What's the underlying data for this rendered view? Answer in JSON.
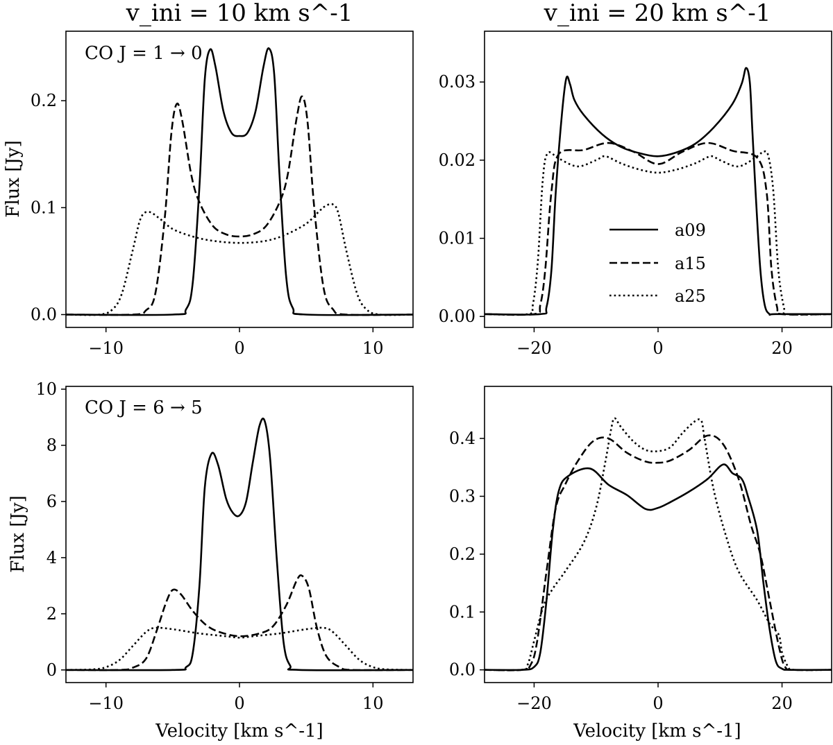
{
  "chart_data": {
    "type": "line",
    "column_titles": [
      "v_ini = 10 km s^-1",
      "v_ini = 20 km s^-1"
    ],
    "legend": {
      "position": "center-right of top-right panel",
      "entries": [
        {
          "label": "a09",
          "style": "solid"
        },
        {
          "label": "a15",
          "style": "dashed"
        },
        {
          "label": "a25",
          "style": "dotted"
        }
      ]
    },
    "panels": [
      {
        "id": "top-left",
        "row_label": "CO J = 1 → 0",
        "xlabel": "",
        "ylabel": "Flux [Jy]",
        "xlim": [
          -13,
          13
        ],
        "ylim": [
          -0.012,
          0.265
        ],
        "xticks": [
          -10,
          0,
          10
        ],
        "xticklabels": [
          "−10",
          "0",
          "10"
        ],
        "yticks": [
          0.0,
          0.1,
          0.2
        ],
        "yticklabels": [
          "0.0",
          "0.1",
          "0.2"
        ],
        "series": [
          {
            "name": "a09",
            "style": "solid",
            "x": [
              -13,
              -5,
              -4,
              -3.5,
              -3,
              -2.6,
              -2.2,
              -1.8,
              -1.2,
              -0.6,
              0,
              0.6,
              1.2,
              1.8,
              2.2,
              2.6,
              3,
              3.5,
              4,
              5,
              13
            ],
            "y": [
              0,
              0,
              0.005,
              0.03,
              0.12,
              0.22,
              0.248,
              0.232,
              0.19,
              0.17,
              0.167,
              0.17,
              0.19,
              0.232,
              0.249,
              0.225,
              0.13,
              0.035,
              0.006,
              0,
              0
            ]
          },
          {
            "name": "a15",
            "style": "dashed",
            "x": [
              -13,
              -8,
              -7,
              -6.3,
              -5.6,
              -5.1,
              -4.7,
              -4.3,
              -3.6,
              -3,
              -2,
              -1,
              0,
              1,
              2,
              3,
              3.6,
              4.3,
              4.7,
              5.1,
              5.6,
              6.3,
              7,
              8,
              13
            ],
            "y": [
              0,
              0,
              0.004,
              0.02,
              0.09,
              0.17,
              0.197,
              0.182,
              0.13,
              0.105,
              0.083,
              0.075,
              0.073,
              0.075,
              0.083,
              0.105,
              0.13,
              0.185,
              0.204,
              0.18,
              0.1,
              0.025,
              0.005,
              0,
              0
            ]
          },
          {
            "name": "a25",
            "style": "dotted",
            "x": [
              -13,
              -10.5,
              -9.5,
              -8.8,
              -8,
              -7.4,
              -6.8,
              -6,
              -5,
              -3.5,
              -2,
              0,
              2,
              3.5,
              5,
              6,
              6.5,
              7,
              7.4,
              8,
              8.8,
              9.5,
              10.5,
              13
            ],
            "y": [
              0,
              0,
              0.005,
              0.02,
              0.06,
              0.09,
              0.096,
              0.09,
              0.08,
              0.073,
              0.069,
              0.067,
              0.069,
              0.075,
              0.085,
              0.097,
              0.102,
              0.103,
              0.095,
              0.06,
              0.02,
              0.005,
              0,
              0
            ]
          }
        ]
      },
      {
        "id": "top-right",
        "row_label": "",
        "xlabel": "",
        "ylabel": "",
        "xlim": [
          -28,
          28
        ],
        "ylim": [
          -0.0014,
          0.0365
        ],
        "xticks": [
          -20,
          0,
          20
        ],
        "xticklabels": [
          "−20",
          "0",
          "20"
        ],
        "yticks": [
          0.0,
          0.01,
          0.02,
          0.03
        ],
        "yticklabels": [
          "0.00",
          "0.01",
          "0.02",
          "0.03"
        ],
        "series": [
          {
            "name": "a09",
            "style": "solid",
            "x": [
              -28,
              -19,
              -18,
              -17.2,
              -16.5,
              -15.5,
              -14.8,
              -14.2,
              -13.5,
              -12,
              -9,
              -6,
              -3,
              0,
              3,
              6,
              9,
              12,
              13.5,
              14.2,
              14.8,
              15.2,
              15.8,
              16.5,
              17.2,
              18,
              19,
              28
            ],
            "y": [
              0.0003,
              0.0003,
              0.0012,
              0.006,
              0.016,
              0.026,
              0.0305,
              0.0297,
              0.0277,
              0.0258,
              0.0233,
              0.0217,
              0.0209,
              0.0205,
              0.021,
              0.0221,
              0.0242,
              0.0272,
              0.0298,
              0.0318,
              0.03,
              0.024,
              0.015,
              0.006,
              0.0015,
              0.0003,
              0.0003,
              0.0003
            ]
          },
          {
            "name": "a15",
            "style": "dashed",
            "x": [
              -28,
              -20,
              -19,
              -18.2,
              -17.2,
              -16,
              -12,
              -8,
              -4,
              0,
              4,
              8,
              12,
              16,
              17.5,
              18.3,
              19.2,
              20,
              28
            ],
            "y": [
              0.0003,
              0.0003,
              0.0015,
              0.006,
              0.016,
              0.0208,
              0.0213,
              0.0222,
              0.0211,
              0.0195,
              0.0211,
              0.0222,
              0.0212,
              0.0203,
              0.016,
              0.006,
              0.0012,
              0.0003,
              0.0003
            ]
          },
          {
            "name": "a25",
            "style": "dotted",
            "x": [
              -28,
              -21,
              -20.2,
              -19.4,
              -18.6,
              -17.8,
              -16,
              -13,
              -10,
              -8.5,
              -6,
              -3,
              0,
              3,
              6,
              8.5,
              10,
              13,
              16,
              17,
              17.8,
              18.6,
              19.4,
              20.3,
              21,
              28
            ],
            "y": [
              0.0003,
              0.0003,
              0.0015,
              0.007,
              0.0175,
              0.0209,
              0.0202,
              0.0192,
              0.02,
              0.0205,
              0.0196,
              0.0188,
              0.0184,
              0.0188,
              0.0196,
              0.0205,
              0.02,
              0.0192,
              0.0205,
              0.0211,
              0.0205,
              0.016,
              0.006,
              0.0012,
              0.0003,
              0.0003
            ]
          }
        ]
      },
      {
        "id": "bottom-left",
        "row_label": "CO J = 6 → 5",
        "xlabel": "Velocity [km s^-1]",
        "ylabel": "Flux [Jy]",
        "xlim": [
          -13,
          13
        ],
        "ylim": [
          -0.45,
          10.1
        ],
        "xticks": [
          -10,
          0,
          10
        ],
        "xticklabels": [
          "−10",
          "0",
          "10"
        ],
        "yticks": [
          0,
          2,
          4,
          6,
          8,
          10
        ],
        "yticklabels": [
          "0",
          "2",
          "4",
          "6",
          "8",
          "10"
        ],
        "series": [
          {
            "name": "a09",
            "style": "solid",
            "x": [
              -13,
              -5,
              -4,
              -3.5,
              -3,
              -2.6,
              -2.1,
              -1.6,
              -1.0,
              -0.5,
              0,
              0.5,
              1.0,
              1.5,
              1.9,
              2.3,
              2.8,
              3.3,
              3.8,
              4.5,
              13
            ],
            "y": [
              0,
              0,
              0.1,
              0.6,
              3.0,
              6.5,
              7.7,
              7.3,
              6.1,
              5.6,
              5.5,
              6.0,
              7.4,
              8.7,
              8.85,
              7.5,
              3.9,
              1.0,
              0.15,
              0,
              0
            ]
          },
          {
            "name": "a15",
            "style": "dashed",
            "x": [
              -13,
              -9,
              -8,
              -7,
              -6.2,
              -5.5,
              -5,
              -4.4,
              -3.5,
              -2.5,
              -1.5,
              0,
              1.5,
              2.5,
              3.5,
              4.3,
              4.7,
              5.2,
              5.8,
              6.5,
              7.5,
              8.5,
              13
            ],
            "y": [
              0,
              0,
              0.08,
              0.4,
              1.4,
              2.4,
              2.85,
              2.7,
              2.1,
              1.6,
              1.35,
              1.2,
              1.3,
              1.55,
              2.3,
              3.2,
              3.35,
              2.9,
              1.5,
              0.5,
              0.1,
              0,
              0
            ]
          },
          {
            "name": "a25",
            "style": "dotted",
            "x": [
              -13,
              -11,
              -10,
              -9,
              -8,
              -7,
              -6.3,
              -5,
              -3,
              -1,
              0,
              1,
              3,
              5,
              6.3,
              7,
              8,
              9,
              10,
              11,
              13
            ],
            "y": [
              0,
              0.02,
              0.1,
              0.35,
              0.85,
              1.35,
              1.5,
              1.45,
              1.3,
              1.2,
              1.15,
              1.2,
              1.3,
              1.45,
              1.5,
              1.35,
              0.85,
              0.35,
              0.1,
              0.02,
              0
            ]
          }
        ]
      },
      {
        "id": "bottom-right",
        "row_label": "",
        "xlabel": "Velocity [km s^-1]",
        "ylabel": "",
        "xlim": [
          -28,
          28
        ],
        "ylim": [
          -0.022,
          0.49
        ],
        "xticks": [
          -20,
          0,
          20
        ],
        "xticklabels": [
          "−20",
          "0",
          "20"
        ],
        "yticks": [
          0.0,
          0.1,
          0.2,
          0.3,
          0.4
        ],
        "yticklabels": [
          "0.0",
          "0.1",
          "0.2",
          "0.3",
          "0.4"
        ],
        "series": [
          {
            "name": "a09",
            "style": "solid",
            "x": [
              -28,
              -22,
              -20,
              -19,
              -18,
              -17,
              -16,
              -14.5,
              -11,
              -8,
              -5,
              -2,
              0,
              2,
              5,
              8,
              10.5,
              12,
              13.5,
              14.5,
              16,
              17,
              18,
              19,
              20,
              21.5,
              28
            ],
            "y": [
              0,
              0,
              0.005,
              0.03,
              0.12,
              0.24,
              0.31,
              0.335,
              0.348,
              0.32,
              0.302,
              0.278,
              0.28,
              0.29,
              0.308,
              0.33,
              0.355,
              0.34,
              0.33,
              0.3,
              0.24,
              0.15,
              0.07,
              0.015,
              0.002,
              0,
              0
            ]
          },
          {
            "name": "a15",
            "style": "dashed",
            "x": [
              -28,
              -22,
              -20.5,
              -19.5,
              -18,
              -16.5,
              -15,
              -13,
              -10.5,
              -8,
              -5,
              -2,
              0,
              2,
              5,
              8,
              10.5,
              13,
              15,
              16.5,
              18,
              19.5,
              20.5,
              22,
              28
            ],
            "y": [
              0,
              0,
              0.01,
              0.05,
              0.17,
              0.28,
              0.32,
              0.36,
              0.395,
              0.4,
              0.375,
              0.36,
              0.358,
              0.362,
              0.38,
              0.405,
              0.39,
              0.33,
              0.25,
              0.2,
              0.12,
              0.04,
              0.005,
              0,
              0
            ]
          },
          {
            "name": "a25",
            "style": "dotted",
            "x": [
              -28,
              -22,
              -21,
              -20,
              -18.5,
              -17,
              -15,
              -12,
              -10,
              -8.5,
              -7.5,
              -7,
              -6,
              -4,
              -2,
              0,
              2,
              4,
              6,
              7,
              7.5,
              9,
              11,
              13,
              16,
              18,
              19.5,
              20,
              21,
              22,
              28
            ],
            "y": [
              0,
              0,
              0.01,
              0.05,
              0.11,
              0.14,
              0.17,
              0.22,
              0.28,
              0.36,
              0.42,
              0.435,
              0.42,
              0.395,
              0.38,
              0.378,
              0.385,
              0.41,
              0.43,
              0.43,
              0.4,
              0.31,
              0.23,
              0.17,
              0.12,
              0.08,
              0.06,
              0.03,
              0.005,
              0,
              0
            ]
          }
        ]
      }
    ]
  }
}
